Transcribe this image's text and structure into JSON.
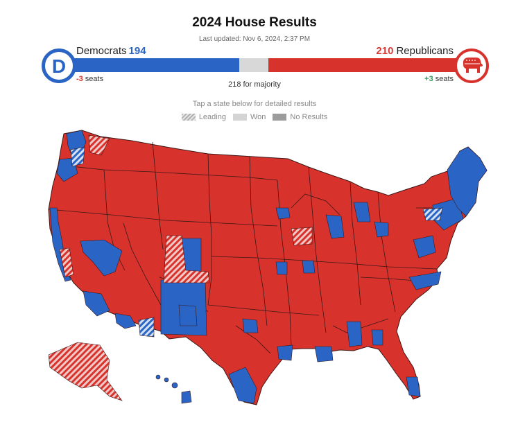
{
  "header": {
    "title": "2024 House Results",
    "updated": "Last updated: Nov 6, 2024, 2:37 PM"
  },
  "democrats": {
    "label": "Democrats",
    "seats": "194",
    "change_value": "-3",
    "change_unit": "seats",
    "logo_letter": "D",
    "color": "#2a64c5"
  },
  "republicans": {
    "label": "Republicans",
    "seats": "210",
    "change_value": "+3",
    "change_unit": "seats",
    "color": "#d8322c"
  },
  "seat_bar": {
    "total": 435,
    "democrats": 194,
    "republicans": 210,
    "undecided": 31,
    "majority_text": "218 for majority"
  },
  "instructions": "Tap a state below for detailed results",
  "legend": [
    {
      "label": "Leading",
      "swatch": "hatched"
    },
    {
      "label": "Won",
      "swatch": "solid-light"
    },
    {
      "label": "No Results",
      "swatch": "solid-dark"
    }
  ],
  "map": {
    "colors": {
      "republican": "#d8322c",
      "democrat": "#2a64c5",
      "border": "#3a1818",
      "leading_rep_stripe": "#f2c8c6",
      "leading_dem_stripe": "#c8d8f0"
    }
  }
}
